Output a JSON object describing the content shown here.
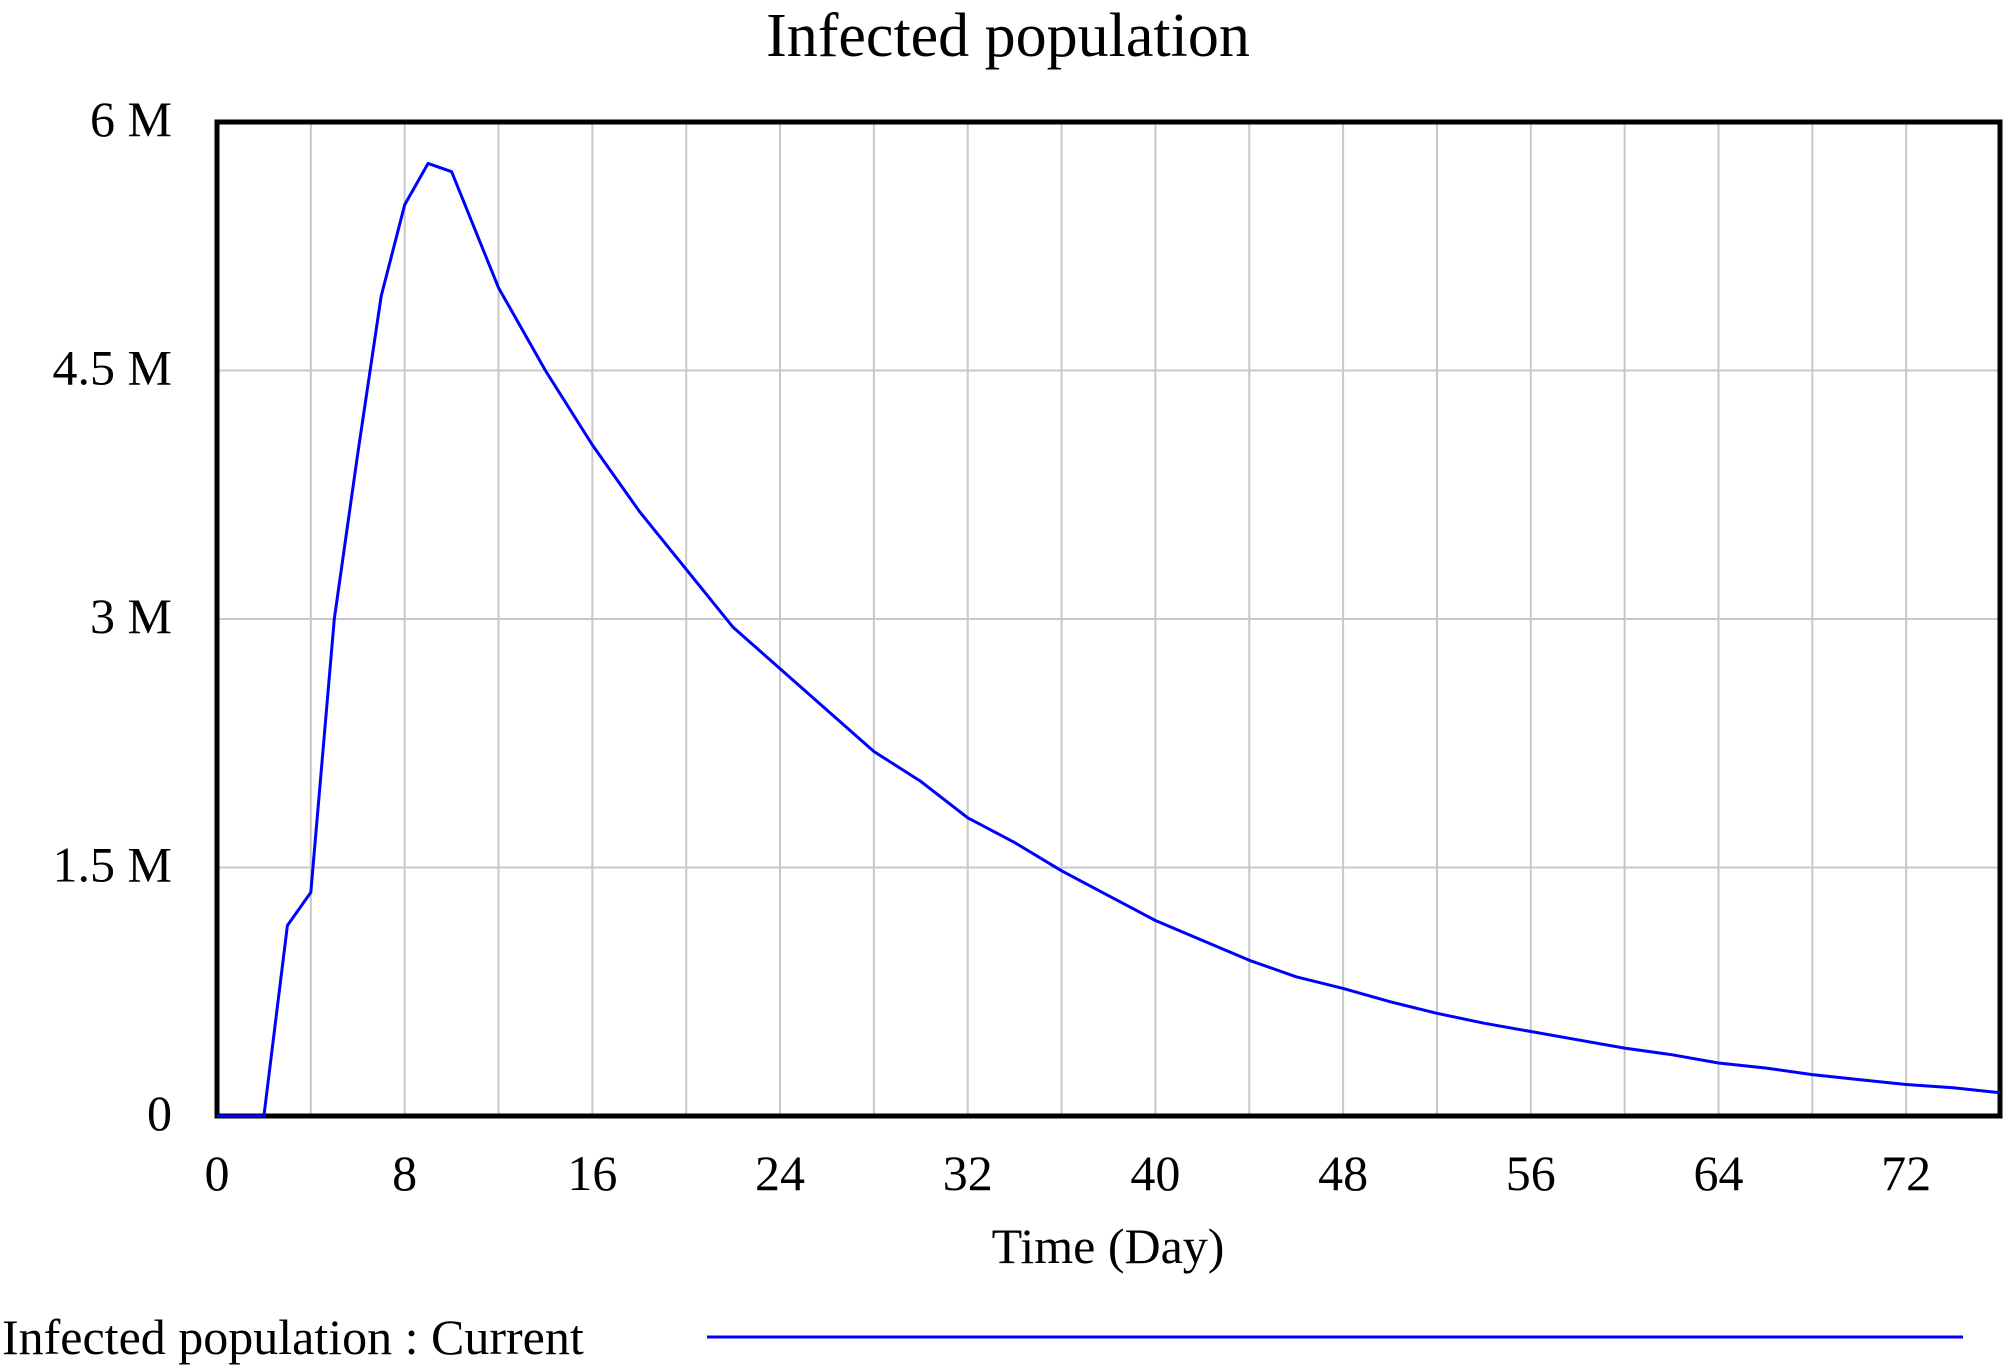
{
  "chart_data": {
    "type": "line",
    "title": "Infected population",
    "xlabel": "Time (Day)",
    "ylabel": "",
    "xlim": [
      0,
      76
    ],
    "ylim": [
      0,
      6000000
    ],
    "x_ticks": [
      0,
      8,
      16,
      24,
      32,
      40,
      48,
      56,
      64,
      72
    ],
    "x_tick_labels": [
      "0",
      "8",
      "16",
      "24",
      "32",
      "40",
      "48",
      "56",
      "64",
      "72"
    ],
    "y_ticks": [
      0,
      1500000,
      3000000,
      4500000,
      6000000
    ],
    "y_tick_labels": [
      "0",
      "1.5 M",
      "3 M",
      "4.5 M",
      "6 M"
    ],
    "grid": true,
    "legend": {
      "position": "bottom-left",
      "entries": [
        "Infected population : Current"
      ]
    },
    "series": [
      {
        "name": "Infected population : Current",
        "color": "#0000ff",
        "x": [
          0,
          1,
          2,
          3,
          4,
          5,
          6,
          7,
          8,
          9,
          10,
          12,
          14,
          16,
          18,
          20,
          22,
          24,
          26,
          28,
          30,
          32,
          34,
          36,
          38,
          40,
          42,
          44,
          46,
          48,
          50,
          52,
          54,
          56,
          58,
          60,
          62,
          64,
          66,
          68,
          70,
          72,
          74,
          76
        ],
        "values": [
          0,
          0,
          0,
          1150000,
          1350000,
          3000000,
          4000000,
          4950000,
          5500000,
          5750000,
          5700000,
          5000000,
          4500000,
          4050000,
          3650000,
          3300000,
          2950000,
          2700000,
          2450000,
          2200000,
          2020000,
          1800000,
          1650000,
          1480000,
          1330000,
          1180000,
          1060000,
          940000,
          840000,
          770000,
          690000,
          620000,
          560000,
          510000,
          460000,
          410000,
          370000,
          320000,
          290000,
          250000,
          220000,
          190000,
          170000,
          140000
        ]
      }
    ]
  }
}
